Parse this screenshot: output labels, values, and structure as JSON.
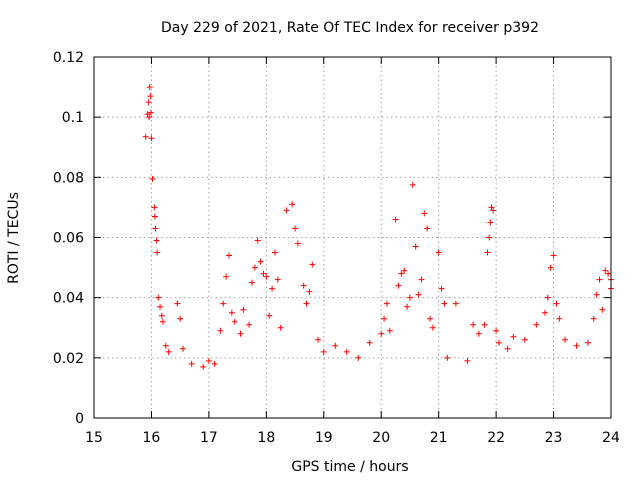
{
  "chart_data": {
    "type": "scatter",
    "title": "Day 229 of 2021, Rate Of TEC Index for receiver p392",
    "xlabel": "GPS time / hours",
    "ylabel": "ROTI / TECUs",
    "xlim": [
      15,
      24
    ],
    "ylim": [
      0,
      0.12
    ],
    "xticks": [
      15,
      16,
      17,
      18,
      19,
      20,
      21,
      22,
      23,
      24
    ],
    "xtick_labels": [
      "15",
      "16",
      "17",
      "18",
      "19",
      "20",
      "21",
      "22",
      "23",
      "24"
    ],
    "yticks": [
      0,
      0.02,
      0.04,
      0.06,
      0.08,
      0.1,
      0.12
    ],
    "ytick_labels": [
      "0",
      "0.02",
      "0.04",
      "0.06",
      "0.08",
      "0.1",
      "0.12"
    ],
    "grid": true,
    "marker": "+",
    "color": "#ff0000",
    "series": [
      {
        "name": "ROTI p392",
        "points": [
          [
            15.9,
            0.0935
          ],
          [
            15.93,
            0.101
          ],
          [
            15.95,
            0.105
          ],
          [
            15.96,
            0.1
          ],
          [
            15.97,
            0.11
          ],
          [
            15.98,
            0.107
          ],
          [
            15.99,
            0.1015
          ],
          [
            16.0,
            0.093
          ],
          [
            16.02,
            0.0795
          ],
          [
            16.05,
            0.07
          ],
          [
            16.06,
            0.067
          ],
          [
            16.07,
            0.063
          ],
          [
            16.09,
            0.059
          ],
          [
            16.1,
            0.055
          ],
          [
            16.12,
            0.04
          ],
          [
            16.15,
            0.037
          ],
          [
            16.18,
            0.034
          ],
          [
            16.2,
            0.032
          ],
          [
            16.25,
            0.024
          ],
          [
            16.3,
            0.022
          ],
          [
            16.45,
            0.038
          ],
          [
            16.5,
            0.033
          ],
          [
            16.55,
            0.023
          ],
          [
            16.7,
            0.018
          ],
          [
            16.9,
            0.017
          ],
          [
            17.0,
            0.019
          ],
          [
            17.1,
            0.018
          ],
          [
            17.2,
            0.029
          ],
          [
            17.25,
            0.038
          ],
          [
            17.3,
            0.047
          ],
          [
            17.35,
            0.054
          ],
          [
            17.4,
            0.035
          ],
          [
            17.45,
            0.032
          ],
          [
            17.55,
            0.028
          ],
          [
            17.6,
            0.036
          ],
          [
            17.7,
            0.031
          ],
          [
            17.75,
            0.045
          ],
          [
            17.8,
            0.05
          ],
          [
            17.85,
            0.059
          ],
          [
            17.9,
            0.052
          ],
          [
            17.95,
            0.048
          ],
          [
            18.0,
            0.047
          ],
          [
            18.05,
            0.034
          ],
          [
            18.1,
            0.043
          ],
          [
            18.15,
            0.055
          ],
          [
            18.2,
            0.046
          ],
          [
            18.25,
            0.03
          ],
          [
            18.35,
            0.069
          ],
          [
            18.45,
            0.071
          ],
          [
            18.5,
            0.063
          ],
          [
            18.55,
            0.058
          ],
          [
            18.65,
            0.044
          ],
          [
            18.7,
            0.038
          ],
          [
            18.75,
            0.042
          ],
          [
            18.8,
            0.051
          ],
          [
            18.9,
            0.026
          ],
          [
            19.0,
            0.022
          ],
          [
            19.2,
            0.024
          ],
          [
            19.4,
            0.022
          ],
          [
            19.6,
            0.02
          ],
          [
            19.8,
            0.025
          ],
          [
            20.0,
            0.028
          ],
          [
            20.05,
            0.033
          ],
          [
            20.1,
            0.038
          ],
          [
            20.15,
            0.029
          ],
          [
            20.25,
            0.066
          ],
          [
            20.3,
            0.044
          ],
          [
            20.35,
            0.048
          ],
          [
            20.4,
            0.049
          ],
          [
            20.45,
            0.037
          ],
          [
            20.5,
            0.04
          ],
          [
            20.55,
            0.0775
          ],
          [
            20.6,
            0.057
          ],
          [
            20.65,
            0.041
          ],
          [
            20.7,
            0.046
          ],
          [
            20.75,
            0.068
          ],
          [
            20.8,
            0.063
          ],
          [
            20.85,
            0.033
          ],
          [
            20.9,
            0.03
          ],
          [
            21.0,
            0.055
          ],
          [
            21.05,
            0.043
          ],
          [
            21.1,
            0.038
          ],
          [
            21.15,
            0.02
          ],
          [
            21.3,
            0.038
          ],
          [
            21.5,
            0.019
          ],
          [
            21.6,
            0.031
          ],
          [
            21.7,
            0.028
          ],
          [
            21.8,
            0.031
          ],
          [
            21.85,
            0.055
          ],
          [
            21.88,
            0.06
          ],
          [
            21.9,
            0.065
          ],
          [
            21.92,
            0.07
          ],
          [
            21.95,
            0.069
          ],
          [
            22.0,
            0.029
          ],
          [
            22.05,
            0.025
          ],
          [
            22.2,
            0.023
          ],
          [
            22.3,
            0.027
          ],
          [
            22.5,
            0.026
          ],
          [
            22.7,
            0.031
          ],
          [
            22.85,
            0.035
          ],
          [
            22.9,
            0.04
          ],
          [
            22.95,
            0.05
          ],
          [
            23.0,
            0.054
          ],
          [
            23.05,
            0.038
          ],
          [
            23.1,
            0.033
          ],
          [
            23.2,
            0.026
          ],
          [
            23.4,
            0.024
          ],
          [
            23.6,
            0.025
          ],
          [
            23.7,
            0.033
          ],
          [
            23.75,
            0.041
          ],
          [
            23.8,
            0.046
          ],
          [
            23.85,
            0.036
          ],
          [
            23.9,
            0.049
          ],
          [
            23.95,
            0.048
          ],
          [
            24.0,
            0.046
          ],
          [
            24.0,
            0.043
          ]
        ]
      }
    ]
  }
}
